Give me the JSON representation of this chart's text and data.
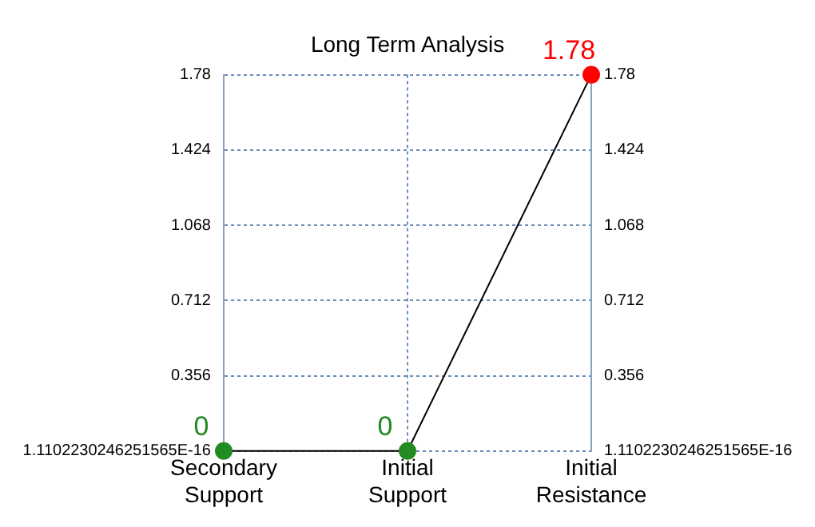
{
  "chart_data": {
    "type": "line",
    "title": "Long Term Analysis",
    "categories": [
      "Secondary\nSupport",
      "Initial\nSupport",
      "Initial\nResistance"
    ],
    "series": [
      {
        "color": "#000000",
        "colors": [
          "#228b22",
          "#228b22",
          "#ff0000"
        ],
        "values": [
          0,
          0,
          1.78
        ]
      }
    ],
    "ylim": [
      0,
      1.78
    ],
    "yticks": [
      {
        "value": 1.1102230246251565e-16,
        "label": "1.1102230246251565E-16"
      },
      0.356,
      0.712,
      1.068,
      1.424,
      1.78
    ],
    "y2lim": [
      0,
      1.78
    ],
    "y2ticks": [
      {
        "value": 1.1102230246251565e-16,
        "label": "1.1102230246251565E-16"
      },
      0.356,
      0.712,
      1.068,
      1.424,
      1.78
    ],
    "grid": true,
    "legend": false,
    "marker": "circle",
    "line_style": "solid",
    "data_labels": true
  }
}
